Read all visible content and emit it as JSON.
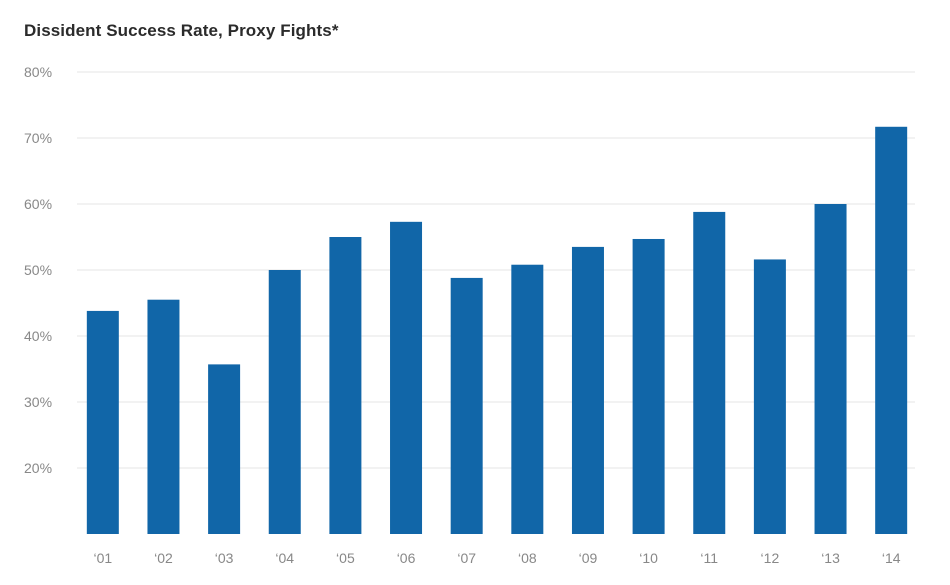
{
  "chart_data": {
    "type": "bar",
    "title": "Dissident Success Rate, Proxy Fights*",
    "xlabel": "",
    "ylabel": "",
    "categories": [
      "‘01",
      "‘02",
      "‘03",
      "‘04",
      "‘05",
      "‘06",
      "‘07",
      "‘08",
      "‘09",
      "‘10",
      "‘11",
      "‘12",
      "‘13",
      "‘14"
    ],
    "values": [
      43.8,
      45.5,
      35.7,
      50.0,
      55.0,
      57.3,
      48.8,
      50.8,
      53.5,
      54.7,
      58.8,
      51.6,
      60.0,
      71.7
    ],
    "ylim": [
      10,
      80
    ],
    "yticks": [
      20,
      30,
      40,
      50,
      60,
      70,
      80
    ],
    "ytick_labels": [
      "20%",
      "30%",
      "40%",
      "50%",
      "60%",
      "70%",
      "80%"
    ],
    "grid": true,
    "color": "#1166a8"
  }
}
